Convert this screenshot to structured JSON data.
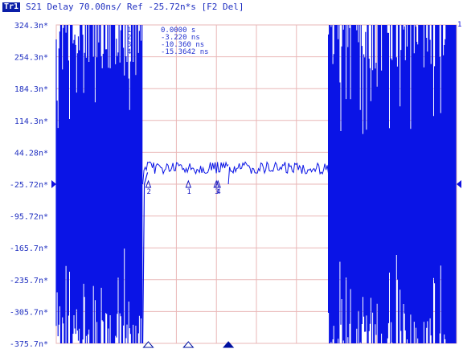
{
  "header": {
    "trace_badge": "Tr1",
    "title": "S21 Delay 70.00ns/ Ref -25.72n*s [F2 Del]"
  },
  "marker_table": {
    "rows": [
      {
        "id": "1",
        "value": "0.0000 s"
      },
      {
        "id": "2",
        "value": "-3.220 ns"
      },
      {
        "id": "3",
        "value": "-10.360 ns"
      },
      {
        "id": "4",
        "value": "-15.3642 ns"
      }
    ]
  },
  "chart_data": {
    "type": "line",
    "title": "S21 Delay 70.00ns/ Ref -25.72n*s [F2 Del]",
    "y_ticks": [
      "324.3n*",
      "254.3n*",
      "184.3n*",
      "114.3n*",
      "44.28n*",
      "-25.72n*",
      "-95.72n*",
      "-165.7n*",
      "-235.7n*",
      "-305.7n*",
      "-375.7n*"
    ],
    "ylim": [
      -375.72,
      324.28
    ],
    "y_scale_per_div": 70,
    "reference_value": -25.72,
    "x_divisions": 10,
    "grid": true,
    "series": [
      {
        "color": "#0a14e6",
        "regions": [
          {
            "x_div": [
              0,
              2.16
            ],
            "behavior": "full-scale noise",
            "y_range": [
              -375.7,
              324.3
            ]
          },
          {
            "x_div": [
              2.16,
              4.3
            ],
            "behavior": "steady",
            "y_mean": 10,
            "y_noise": 13
          },
          {
            "x_div": [
              4.3,
              6.8
            ],
            "behavior": "steady",
            "y_mean": 10,
            "y_noise": 13
          },
          {
            "x_div": [
              6.8,
              10
            ],
            "behavior": "full-scale noise",
            "y_range": [
              -375.7,
              324.3
            ]
          }
        ]
      }
    ],
    "markers": [
      {
        "id": "1",
        "x_div": 3.3,
        "y": -25.72
      },
      {
        "id": "2",
        "x_div": 2.3,
        "y": -25.72
      },
      {
        "id": "3",
        "x_div": 4.0,
        "y": -25.72
      },
      {
        "id": "4",
        "x_div": 4.04,
        "y": -25.72
      }
    ],
    "reference_markers": {
      "left_arrow": "ref-left",
      "right_arrow": "ref-right",
      "right_label": "1"
    },
    "bottom_triangles": [
      {
        "x_div": 2.3,
        "filled": false
      },
      {
        "x_div": 3.3,
        "filled": false
      },
      {
        "x_div": 4.3,
        "filled": true
      }
    ]
  },
  "colors": {
    "trace": "#0a14e6",
    "grid": "#e9b7b7",
    "axis_text": "#1f2fc0"
  }
}
